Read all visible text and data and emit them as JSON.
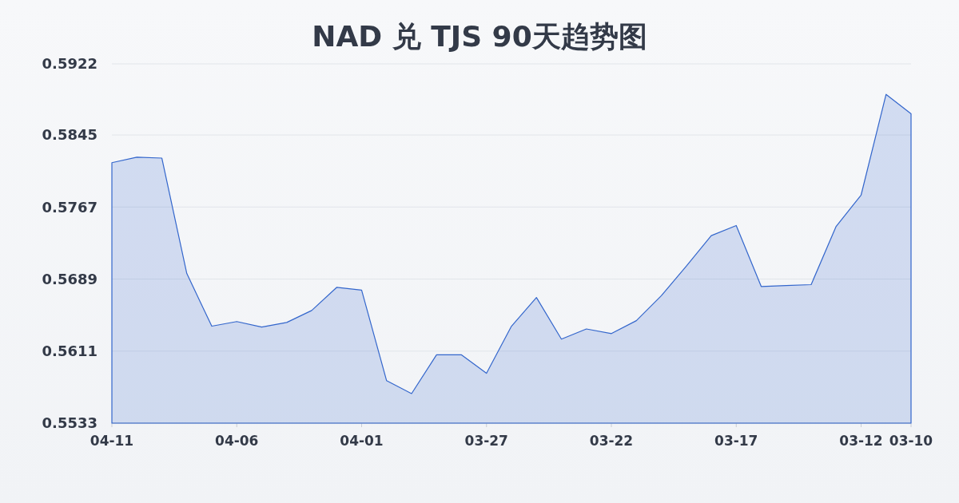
{
  "chart_data": {
    "type": "area",
    "title": "NAD 兑 TJS 90天趋势图",
    "x": [
      "--04-11",
      "--04-10",
      "--04-09",
      "--04-08",
      "--04-07",
      "--04-06",
      "--04-05",
      "--04-04",
      "--04-03",
      "--04-02",
      "--04-01",
      "--03-31",
      "--03-30",
      "--03-29",
      "--03-28",
      "--03-27",
      "--03-26",
      "--03-25",
      "--03-24",
      "--03-23",
      "--03-22",
      "--03-21",
      "--03-20",
      "--03-19",
      "--03-18",
      "--03-17",
      "--03-16",
      "--03-15",
      "--03-14",
      "--03-13",
      "--03-12",
      "--03-11",
      "--03-10"
    ],
    "values": [
      0.5815,
      0.5821,
      0.582,
      0.5695,
      0.5638,
      0.5643,
      0.5637,
      0.5642,
      0.5655,
      0.568,
      0.5677,
      0.5579,
      0.5565,
      0.5607,
      0.5607,
      0.5587,
      0.5638,
      0.5669,
      0.5624,
      0.5635,
      0.563,
      0.5644,
      0.5671,
      0.5703,
      0.5736,
      0.5747,
      0.5681,
      0.5682,
      0.5683,
      0.5746,
      0.578,
      0.5889,
      0.5868
    ],
    "color": "#3366cc",
    "xlim": [
      "--04-11",
      "--03-10"
    ],
    "xticks": [
      {
        "value": "--04-11",
        "label": "04-11"
      },
      {
        "value": "--04-06",
        "label": "04-06"
      },
      {
        "value": "--04-01",
        "label": "04-01"
      },
      {
        "value": "--03-27",
        "label": "03-27"
      },
      {
        "value": "--03-22",
        "label": "03-22"
      },
      {
        "value": "--03-17",
        "label": "03-17"
      },
      {
        "value": "--03-12",
        "label": "03-12"
      },
      {
        "value": "--03-10",
        "label": "03-10"
      }
    ],
    "ylim": [
      0.5533,
      0.5922
    ],
    "yticks": [
      0.5533,
      0.5611,
      0.5689,
      0.5767,
      0.5845,
      0.5922
    ],
    "grid": "y"
  }
}
